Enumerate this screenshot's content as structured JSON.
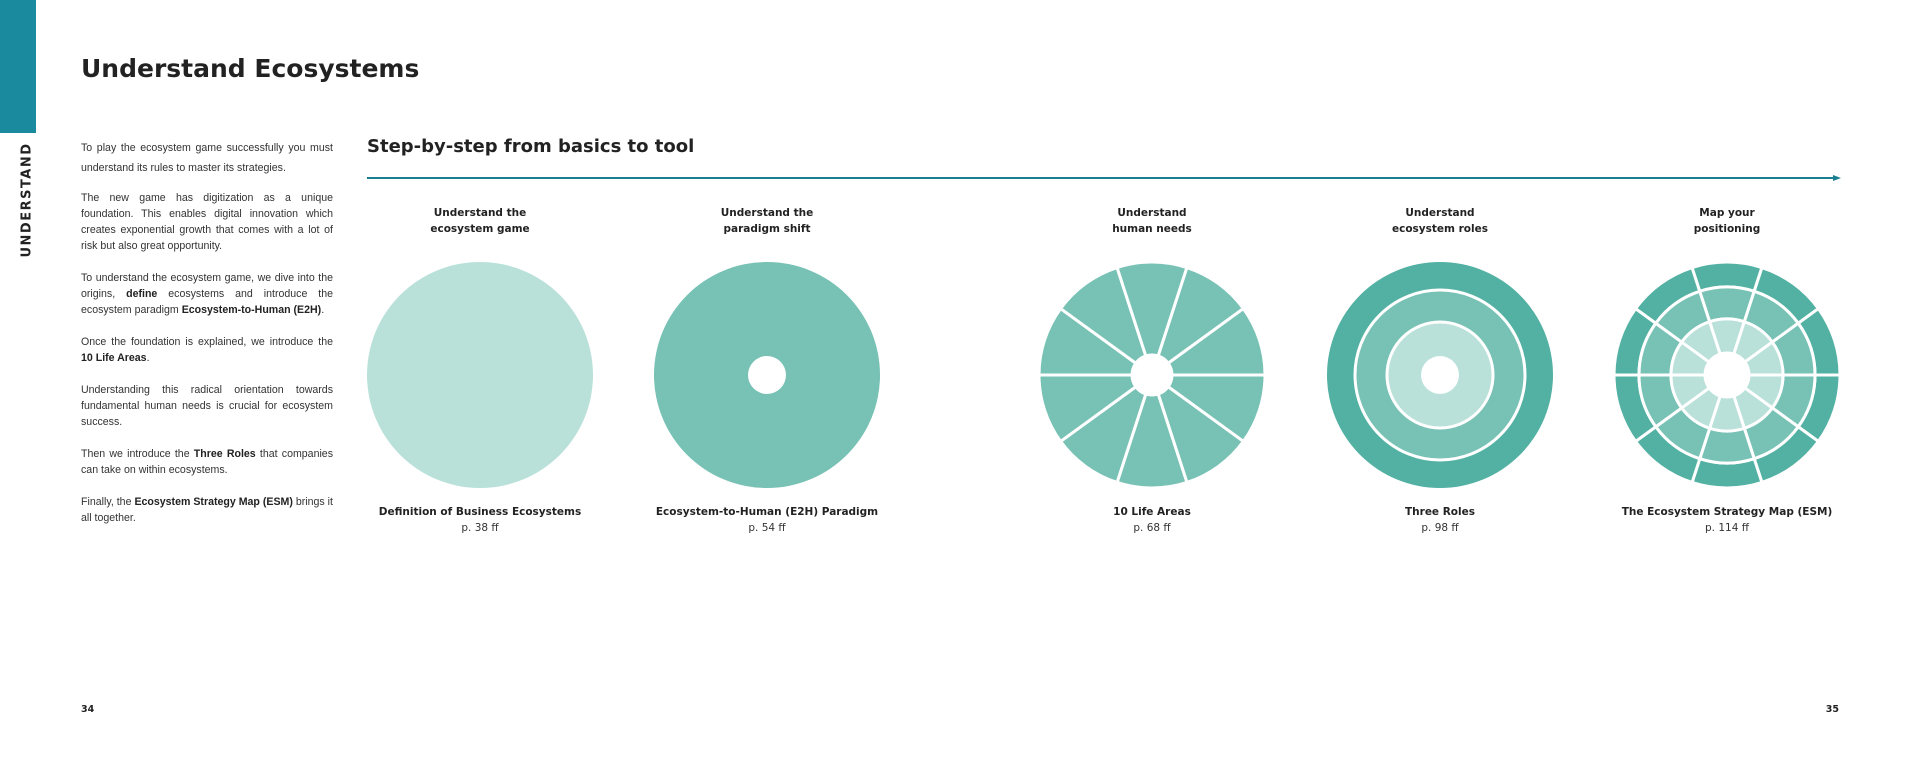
{
  "section_tab": "UNDERSTAND",
  "title": "Understand Ecosystems",
  "intro_paragraphs": [
    [
      {
        "t": "To play the ecosystem game successfully you must understand its rules to master its strategies."
      }
    ],
    [
      {
        "t": "The new game has digitization as a unique foundation. This enables digital innovation which creates exponential growth that comes with a lot of risk but also great opportunity."
      }
    ],
    [
      {
        "t": "To understand the ecosystem game, we dive into the origins, "
      },
      {
        "t": "define",
        "b": true
      },
      {
        "t": " ecosystems and introduce the ecosystem paradigm "
      },
      {
        "t": "Ecosystem-to-Human (E2H)",
        "b": true
      },
      {
        "t": "."
      }
    ],
    [
      {
        "t": "Once the foundation is explained, we introduce the "
      },
      {
        "t": "10 Life Areas",
        "b": true
      },
      {
        "t": "."
      }
    ],
    [
      {
        "t": "Understanding this radical orientation towards fundamental human needs is crucial for ecosystem success."
      }
    ],
    [
      {
        "t": "Then we introduce the "
      },
      {
        "t": "Three Roles",
        "b": true
      },
      {
        "t": " that companies can take on within ecosystems."
      }
    ],
    [
      {
        "t": "Finally, the "
      },
      {
        "t": "Ecosystem Strategy Map (ESM)",
        "b": true
      },
      {
        "t": " brings it all together."
      }
    ]
  ],
  "steps_heading": "Step-by-step from basics to tool",
  "colors": {
    "tab": "#1a8a9e",
    "arrow": "#1a7f90",
    "light": "#b9e1d9",
    "medium": "#78c1b5",
    "dark": "#52b1a2"
  },
  "steps": [
    {
      "label_1": "Understand the",
      "label_2": "ecosystem game",
      "caption": "Definition of Business Ecosystems",
      "ref": "p. 38 ff",
      "icon": "full-circle-icon"
    },
    {
      "label_1": "Understand the",
      "label_2": "paradigm shift",
      "caption": "Ecosystem-to-Human (E2H) Paradigm",
      "ref": "p. 54 ff",
      "icon": "donut-icon"
    },
    {
      "label_1": "Understand",
      "label_2": "human needs",
      "caption": "10 Life Areas",
      "ref": "p. 68 ff",
      "icon": "segmented-wheel-icon"
    },
    {
      "label_1": "Understand",
      "label_2": "ecosystem roles",
      "caption": "Three Roles",
      "ref": "p. 98 ff",
      "icon": "concentric-rings-icon"
    },
    {
      "label_1": "Map your",
      "label_2": "positioning",
      "caption": "The Ecosystem Strategy Map (ESM)",
      "ref": "p. 114 ff",
      "icon": "segmented-rings-icon"
    }
  ],
  "page_left": "34",
  "page_right": "35"
}
